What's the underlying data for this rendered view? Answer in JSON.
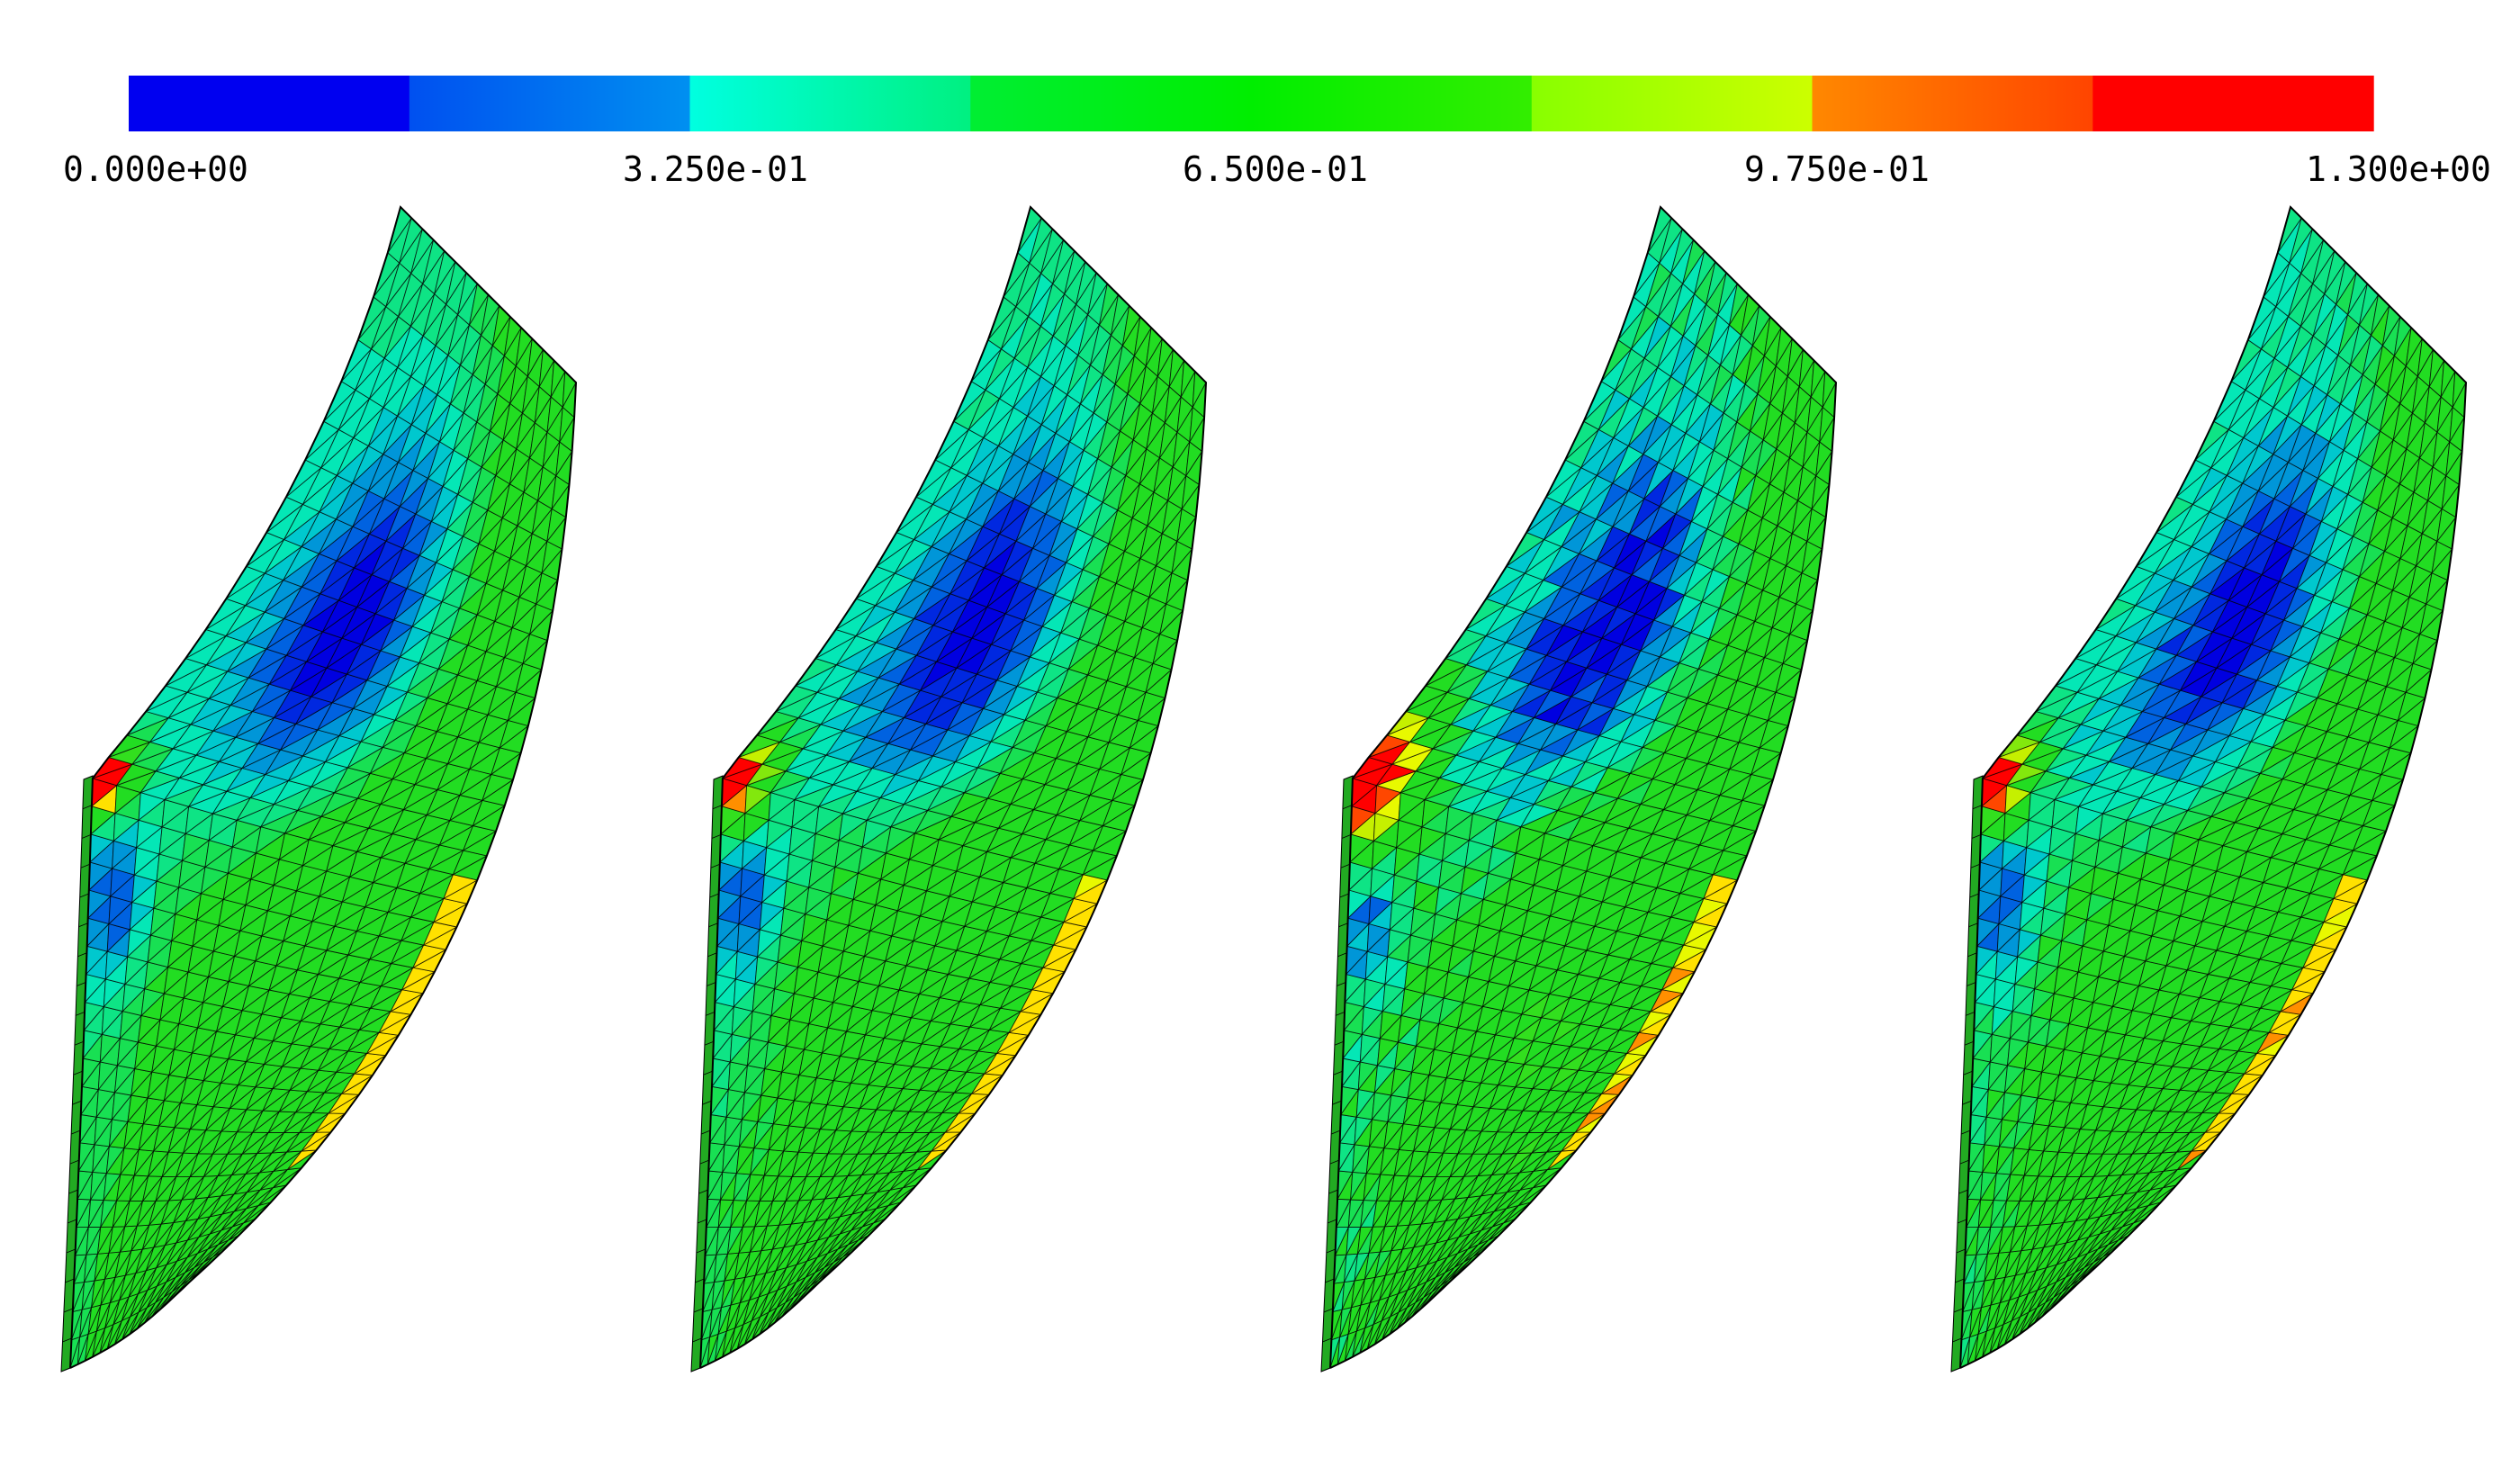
{
  "colorbar": {
    "min_label": "0.000e+00",
    "tick_labels": [
      "0.000e+00",
      "3.250e-01",
      "6.500e-01",
      "9.750e-01",
      "1.300e+00"
    ],
    "range": [
      0,
      1.3
    ],
    "bands": [
      {
        "from": "#0000f0",
        "to": "#0000f0"
      },
      {
        "from": "#0050f0",
        "to": "#0090f0"
      },
      {
        "from": "#00ffe0",
        "to": "#00f080"
      },
      {
        "from": "#00ee33",
        "to": "#00ee00"
      },
      {
        "from": "#00ee00",
        "to": "#33ee00"
      },
      {
        "from": "#88ff00",
        "to": "#ccff00"
      },
      {
        "from": "#ff8800",
        "to": "#ff4400"
      },
      {
        "from": "#ff0000",
        "to": "#ff0000"
      }
    ]
  },
  "palette": {
    "blue": "#0000e0",
    "mid_blue": "#0070e0",
    "cyan": "#00e8c8",
    "green": "#22dd22",
    "yellow_green": "#bbee00",
    "yellow": "#ffff00",
    "orange": "#ff8800",
    "red": "#ff0000",
    "edge_green": "#22aa22",
    "mesh": "#000000"
  },
  "panels": [
    {
      "id": "panel-1",
      "red_scale": 0.8,
      "noise": 0.0
    },
    {
      "id": "panel-2",
      "red_scale": 1.0,
      "noise": 0.15
    },
    {
      "id": "panel-3",
      "red_scale": 1.7,
      "noise": 0.5
    },
    {
      "id": "panel-4",
      "red_scale": 1.0,
      "noise": 0.25
    }
  ]
}
